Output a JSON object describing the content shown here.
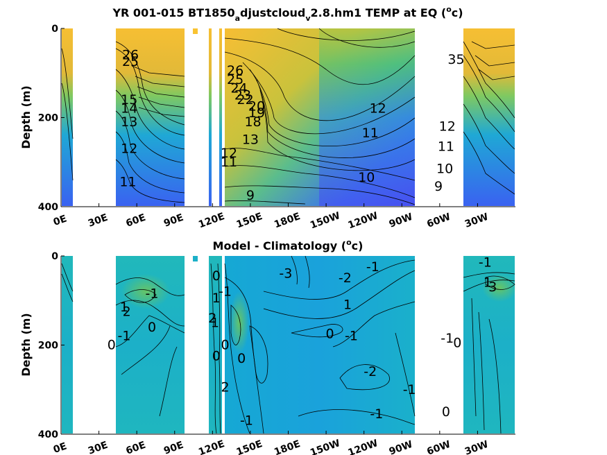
{
  "chart_data": [
    {
      "type": "heatmap",
      "title": "YR 001-015 BT1850_adjustcloud_v2.8.hm1 TEMP at EQ (oC)",
      "title_parts": {
        "main": "YR 001-015 BT1850",
        "sub1": "a",
        "mid": "djustcloud",
        "sub2": "v",
        "rest": "2.8.hm1 TEMP at EQ (",
        "sup": "o",
        "end": "c)"
      },
      "ylabel": "Depth (m)",
      "xlabel": "",
      "y_reversed": true,
      "ylim": [
        0,
        400
      ],
      "yticks": [
        0,
        200,
        400
      ],
      "xtick_labels": [
        "0E",
        "30E",
        "60E",
        "90E",
        "120E",
        "150E",
        "180E",
        "150W",
        "120W",
        "90W",
        "60W",
        "30W"
      ],
      "colormap": "parula",
      "land_gaps_lon": [
        [
          10,
          45
        ],
        [
          100,
          120
        ],
        [
          280,
          295
        ]
      ],
      "contour_labels": [
        {
          "text": "26",
          "lon": 55,
          "depth": 60
        },
        {
          "text": "25",
          "lon": 55,
          "depth": 75
        },
        {
          "text": "13",
          "lon": 54,
          "depth": 210
        },
        {
          "text": "14",
          "lon": 54,
          "depth": 180
        },
        {
          "text": "15",
          "lon": 54,
          "depth": 160
        },
        {
          "text": "12",
          "lon": 54,
          "depth": 270
        },
        {
          "text": "11",
          "lon": 53,
          "depth": 345
        },
        {
          "text": "26",
          "lon": 138,
          "depth": 95
        },
        {
          "text": "25",
          "lon": 138,
          "depth": 115
        },
        {
          "text": "24",
          "lon": 141,
          "depth": 135
        },
        {
          "text": "23",
          "lon": 144,
          "depth": 150
        },
        {
          "text": "22",
          "lon": 146,
          "depth": 160
        },
        {
          "text": "20",
          "lon": 155,
          "depth": 175
        },
        {
          "text": "19",
          "lon": 155,
          "depth": 190
        },
        {
          "text": "18",
          "lon": 152,
          "depth": 210
        },
        {
          "text": "12",
          "lon": 133,
          "depth": 280
        },
        {
          "text": "11",
          "lon": 133,
          "depth": 300
        },
        {
          "text": "13",
          "lon": 150,
          "depth": 250
        },
        {
          "text": "9",
          "lon": 150,
          "depth": 375
        },
        {
          "text": "10",
          "lon": 242,
          "depth": 335
        },
        {
          "text": "11",
          "lon": 245,
          "depth": 235
        },
        {
          "text": "12",
          "lon": 251,
          "depth": 180
        },
        {
          "text": "9",
          "lon": 299,
          "depth": 355
        },
        {
          "text": "10",
          "lon": 304,
          "depth": 315
        },
        {
          "text": "11",
          "lon": 305,
          "depth": 265
        },
        {
          "text": "12",
          "lon": 306,
          "depth": 220
        },
        {
          "text": "35",
          "lon": 313,
          "depth": 70
        }
      ]
    },
    {
      "type": "heatmap",
      "title": "Model - Climatology (oC)",
      "title_parts": {
        "main": "Model - Climatology (",
        "sup": "o",
        "end": "c)"
      },
      "ylabel": "Depth (m)",
      "xlabel": "",
      "y_reversed": true,
      "ylim": [
        0,
        400
      ],
      "yticks": [
        0,
        200,
        400
      ],
      "xtick_labels": [
        "0E",
        "30E",
        "60E",
        "90E",
        "120E",
        "150E",
        "180E",
        "150W",
        "120W",
        "90W",
        "60W",
        "30W"
      ],
      "colormap": "parula",
      "land_gaps_lon": [
        [
          10,
          45
        ],
        [
          100,
          120
        ],
        [
          280,
          295
        ]
      ],
      "contour_labels": [
        {
          "text": "-1",
          "lon": 72,
          "depth": 85
        },
        {
          "text": "1",
          "lon": 50,
          "depth": 115
        },
        {
          "text": "2",
          "lon": 52,
          "depth": 125
        },
        {
          "text": "0",
          "lon": 72,
          "depth": 160
        },
        {
          "text": "-1",
          "lon": 50,
          "depth": 180
        },
        {
          "text": "0",
          "lon": 40,
          "depth": 200
        },
        {
          "text": "0",
          "lon": 123,
          "depth": 45
        },
        {
          "text": "1",
          "lon": 123,
          "depth": 95
        },
        {
          "text": "-1",
          "lon": 130,
          "depth": 80
        },
        {
          "text": "2",
          "lon": 120,
          "depth": 140
        },
        {
          "text": "1",
          "lon": 122,
          "depth": 150
        },
        {
          "text": "0",
          "lon": 130,
          "depth": 200
        },
        {
          "text": "0",
          "lon": 123,
          "depth": 225
        },
        {
          "text": "0",
          "lon": 143,
          "depth": 230
        },
        {
          "text": "2",
          "lon": 130,
          "depth": 295
        },
        {
          "text": "-3",
          "lon": 178,
          "depth": 40
        },
        {
          "text": "-2",
          "lon": 225,
          "depth": 50
        },
        {
          "text": "-1",
          "lon": 247,
          "depth": 25
        },
        {
          "text": "1",
          "lon": 227,
          "depth": 110
        },
        {
          "text": "0",
          "lon": 213,
          "depth": 175
        },
        {
          "text": "-1",
          "lon": 230,
          "depth": 180
        },
        {
          "text": "-2",
          "lon": 245,
          "depth": 260
        },
        {
          "text": "-1",
          "lon": 276,
          "depth": 300
        },
        {
          "text": "-1",
          "lon": 250,
          "depth": 355
        },
        {
          "text": "-1",
          "lon": 147,
          "depth": 370
        },
        {
          "text": "-1",
          "lon": 336,
          "depth": 15
        },
        {
          "text": "1",
          "lon": 338,
          "depth": 60
        },
        {
          "text": "3",
          "lon": 342,
          "depth": 70
        },
        {
          "text": "-1",
          "lon": 306,
          "depth": 185
        },
        {
          "text": "0",
          "lon": 314,
          "depth": 195
        },
        {
          "text": "0",
          "lon": 305,
          "depth": 350
        }
      ]
    }
  ]
}
